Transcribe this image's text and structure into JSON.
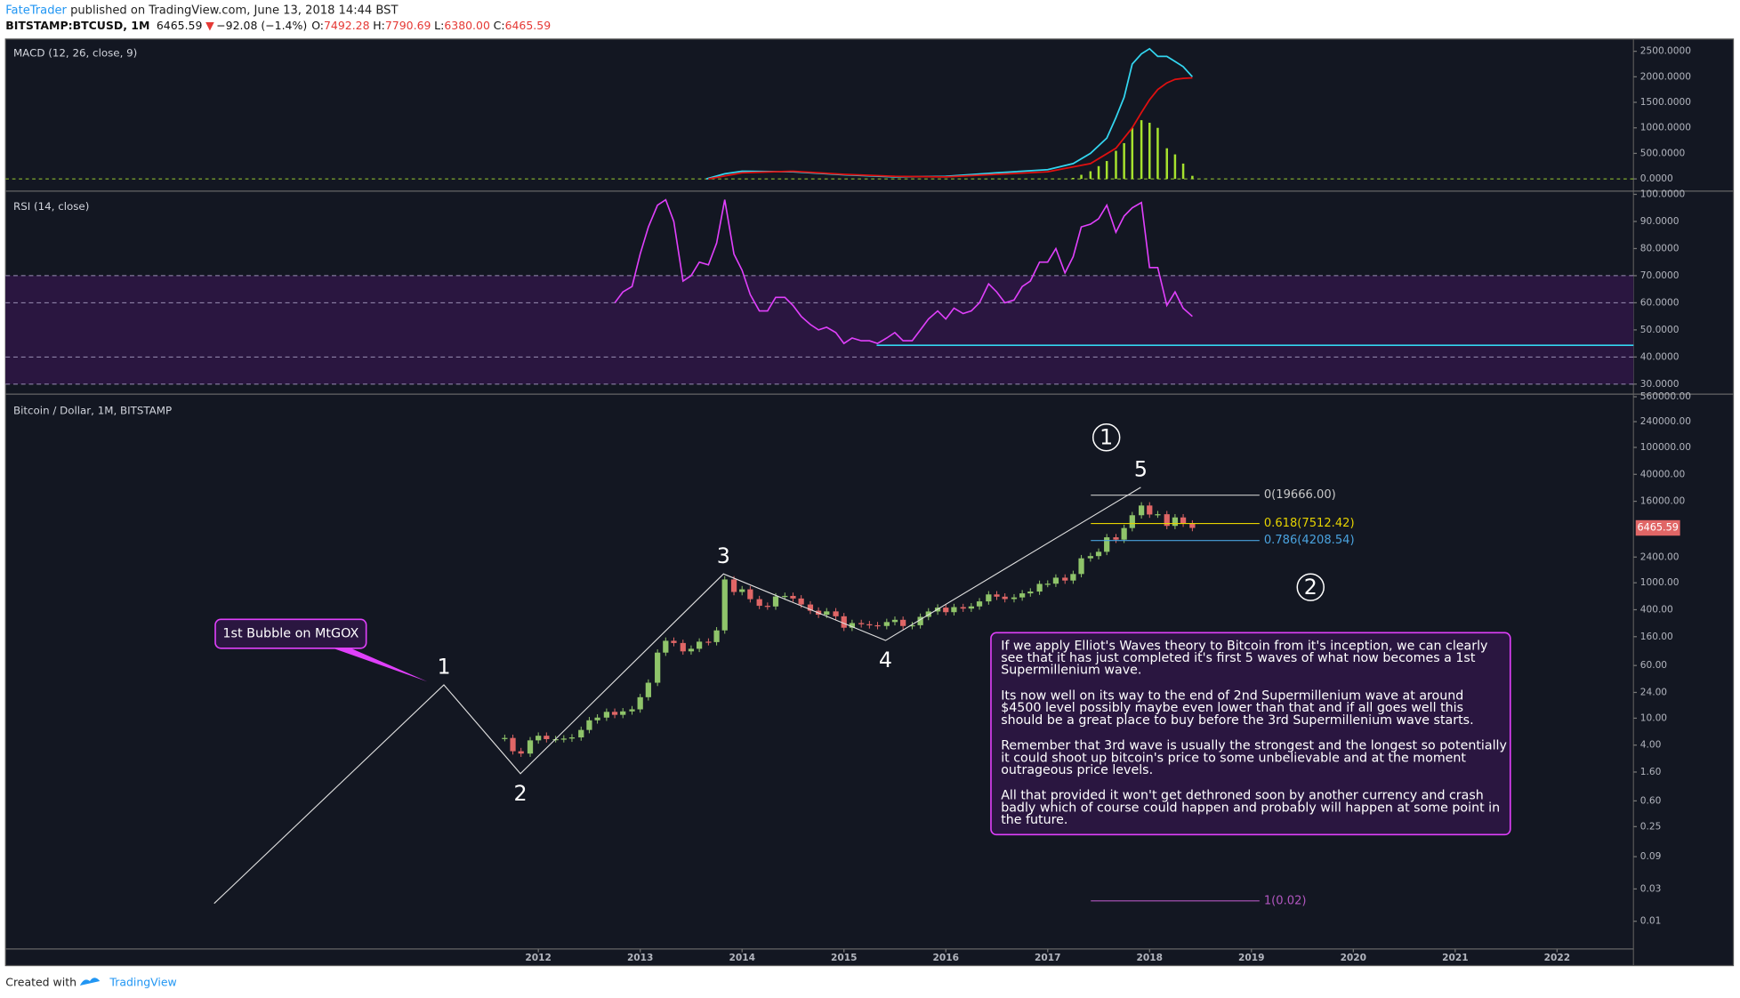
{
  "header": {
    "author": "FateTrader",
    "published": " published on TradingView.com, June 13, 2018 14:44 BST",
    "symbol": "BITSTAMP:BTCUSD, 1M",
    "last": "6465.59",
    "arrow": "▼",
    "change": "−92.08 (−1.4%)",
    "ohlc": [
      {
        "key": "O:",
        "value": "7492.28"
      },
      {
        "key": "H:",
        "value": "7790.69"
      },
      {
        "key": "L:",
        "value": "6380.00"
      },
      {
        "key": "C:",
        "value": "6465.59"
      }
    ]
  },
  "footer": {
    "created": "Created with",
    "brand": "TradingView"
  },
  "chart_data": {
    "type": "candlestick",
    "xlim": [
      2006.77,
      2022.75
    ],
    "xticks": [
      2012,
      2013,
      2014,
      2015,
      2016,
      2017,
      2018,
      2019,
      2020,
      2021,
      2022
    ],
    "macd": {
      "title": "MACD (12, 26, close, 9)",
      "ylim": [
        -239,
        2739
      ],
      "yticks": [
        {
          "value": 0,
          "label": "0.0000"
        },
        {
          "value": 500,
          "label": "500.0000"
        },
        {
          "value": 1000,
          "label": "1000.0000"
        },
        {
          "value": 1500,
          "label": "1500.0000"
        },
        {
          "value": 2000,
          "label": "2000.0000"
        },
        {
          "value": 2500,
          "label": "2500.0000"
        }
      ],
      "zero_color": "#9acd32",
      "series": [
        {
          "color": "#33d6f0",
          "x": [
            2013.65,
            2013.83,
            2014.0,
            2014.5,
            2015.0,
            2015.5,
            2016.0,
            2016.5,
            2017.0,
            2017.25,
            2017.42,
            2017.58,
            2017.67,
            2017.75,
            2017.83,
            2017.92,
            2018.0,
            2018.08,
            2018.17,
            2018.25,
            2018.33,
            2018.42
          ],
          "values": [
            0,
            100,
            150,
            140,
            80,
            40,
            50,
            120,
            180,
            300,
            500,
            800,
            1200,
            1600,
            2250,
            2450,
            2550,
            2400,
            2400,
            2300,
            2200,
            2000
          ]
        },
        {
          "color": "#e01010",
          "x": [
            2013.67,
            2014.0,
            2014.5,
            2015.0,
            2015.5,
            2016.0,
            2016.5,
            2017.0,
            2017.42,
            2017.67,
            2017.83,
            2017.92,
            2018.0,
            2018.08,
            2018.17,
            2018.25,
            2018.33,
            2018.42
          ],
          "values": [
            0,
            120,
            150,
            90,
            50,
            40,
            90,
            140,
            300,
            600,
            1000,
            1300,
            1550,
            1750,
            1880,
            1950,
            1970,
            1980
          ]
        }
      ],
      "histogram": {
        "color": "#a6e22e",
        "x": [
          2017.25,
          2017.33,
          2017.42,
          2017.5,
          2017.58,
          2017.67,
          2017.75,
          2017.83,
          2017.92,
          2018.0,
          2018.08,
          2018.17,
          2018.25,
          2018.33,
          2018.42
        ],
        "values": [
          20,
          80,
          150,
          250,
          350,
          550,
          700,
          1000,
          1150,
          1100,
          1000,
          600,
          480,
          300,
          60
        ]
      }
    },
    "rsi": {
      "title": "RSI (14, close)",
      "color": "#e040fb",
      "ylim": [
        26.3,
        101.2
      ],
      "yticks": [
        {
          "value": 30,
          "label": "30.0000"
        },
        {
          "value": 40,
          "label": "40.0000"
        },
        {
          "value": 50,
          "label": "50.0000"
        },
        {
          "value": 60,
          "label": "60.0000"
        },
        {
          "value": 70,
          "label": "70.0000"
        },
        {
          "value": 80,
          "label": "80.0000"
        },
        {
          "value": 90,
          "label": "90.0000"
        },
        {
          "value": 100,
          "label": "100.0000"
        }
      ],
      "bands": [
        30,
        40,
        60,
        70
      ],
      "x": [
        2012.75,
        2012.83,
        2012.92,
        2013.0,
        2013.08,
        2013.17,
        2013.25,
        2013.33,
        2013.42,
        2013.5,
        2013.58,
        2013.67,
        2013.75,
        2013.83,
        2013.92,
        2014.0,
        2014.08,
        2014.17,
        2014.25,
        2014.33,
        2014.42,
        2014.5,
        2014.58,
        2014.67,
        2014.75,
        2014.83,
        2014.92,
        2015.0,
        2015.08,
        2015.17,
        2015.25,
        2015.33,
        2015.42,
        2015.5,
        2015.58,
        2015.67,
        2015.75,
        2015.83,
        2015.92,
        2016.0,
        2016.08,
        2016.17,
        2016.25,
        2016.33,
        2016.42,
        2016.5,
        2016.58,
        2016.67,
        2016.75,
        2016.83,
        2016.92,
        2017.0,
        2017.08,
        2017.17,
        2017.25,
        2017.33,
        2017.42,
        2017.5,
        2017.58,
        2017.67,
        2017.75,
        2017.83,
        2017.92,
        2018.0,
        2018.08,
        2018.17,
        2018.25,
        2018.33,
        2018.42
      ],
      "values": [
        60,
        64,
        66,
        78,
        88,
        96,
        98,
        90,
        68,
        70,
        75,
        74,
        82,
        98,
        78,
        72,
        63,
        57,
        57,
        62,
        62,
        59,
        55,
        52,
        50,
        51,
        49,
        45,
        47,
        46,
        46,
        45,
        47,
        49,
        46,
        46,
        50,
        54,
        57,
        54,
        58,
        56,
        57,
        60,
        67,
        64,
        60,
        61,
        66,
        68,
        75,
        75,
        80,
        71,
        77,
        88,
        89,
        91,
        96,
        86,
        92,
        95,
        97,
        73,
        73,
        59,
        64,
        58,
        55
      ]
    },
    "price": {
      "title": "Bitcoin / Dollar, 1M, BITSTAMP",
      "log_scale": true,
      "up_color": "#8fc46a",
      "down_color": "#e06666",
      "ylim": [
        0.0039,
        612000
      ],
      "yticks": [
        {
          "value": 0.01,
          "label": "0.01"
        },
        {
          "value": 0.03,
          "label": "0.03"
        },
        {
          "value": 0.09,
          "label": "0.09"
        },
        {
          "value": 0.25,
          "label": "0.25"
        },
        {
          "value": 0.6,
          "label": "0.60"
        },
        {
          "value": 1.6,
          "label": "1.60"
        },
        {
          "value": 4,
          "label": "4.00"
        },
        {
          "value": 10,
          "label": "10.00"
        },
        {
          "value": 24,
          "label": "24.00"
        },
        {
          "value": 60,
          "label": "60.00"
        },
        {
          "value": 160,
          "label": "160.00"
        },
        {
          "value": 400,
          "label": "400.00"
        },
        {
          "value": 1000,
          "label": "1000.00"
        },
        {
          "value": 2400,
          "label": "2400.00"
        },
        {
          "value": 16000,
          "label": "16000.00"
        },
        {
          "value": 40000,
          "label": "40000.00"
        },
        {
          "value": 100000,
          "label": "100000.00"
        },
        {
          "value": 240000,
          "label": "240000.00"
        },
        {
          "value": 560000,
          "label": "560000.00"
        }
      ],
      "last_price": 6465.59,
      "last_color": "#e06666",
      "x": [
        2011.67,
        2011.75,
        2011.83,
        2011.92,
        2012.0,
        2012.08,
        2012.17,
        2012.25,
        2012.33,
        2012.42,
        2012.5,
        2012.58,
        2012.67,
        2012.75,
        2012.83,
        2012.92,
        2013.0,
        2013.08,
        2013.17,
        2013.25,
        2013.33,
        2013.42,
        2013.5,
        2013.58,
        2013.67,
        2013.75,
        2013.83,
        2013.92,
        2014.0,
        2014.08,
        2014.17,
        2014.25,
        2014.33,
        2014.42,
        2014.5,
        2014.58,
        2014.67,
        2014.75,
        2014.83,
        2014.92,
        2015.0,
        2015.08,
        2015.17,
        2015.25,
        2015.33,
        2015.42,
        2015.5,
        2015.58,
        2015.67,
        2015.75,
        2015.83,
        2015.92,
        2016.0,
        2016.08,
        2016.17,
        2016.25,
        2016.33,
        2016.42,
        2016.5,
        2016.58,
        2016.67,
        2016.75,
        2016.83,
        2016.92,
        2017.0,
        2017.08,
        2017.17,
        2017.25,
        2017.33,
        2017.42,
        2017.5,
        2017.58,
        2017.67,
        2017.75,
        2017.83,
        2017.92,
        2018.0,
        2018.08,
        2018.17,
        2018.25,
        2018.33,
        2018.42
      ],
      "close": [
        5.1,
        3.25,
        3.0,
        4.7,
        5.5,
        4.9,
        4.9,
        5.0,
        5.2,
        6.7,
        9.3,
        10.2,
        12.4,
        11.2,
        12.6,
        13.5,
        20.4,
        33.4,
        93,
        139,
        129,
        97,
        106,
        135,
        133,
        198,
        1120,
        732,
        800,
        573,
        457,
        447,
        628,
        640,
        586,
        478,
        387,
        338,
        378,
        320,
        217,
        254,
        244,
        236,
        230,
        263,
        284,
        230,
        236,
        314,
        377,
        430,
        368,
        437,
        416,
        448,
        531,
        673,
        624,
        575,
        608,
        698,
        742,
        963,
        970,
        1190,
        1080,
        1348,
        2300,
        2480,
        2870,
        4700,
        4340,
        6440,
        9950,
        13850,
        10200,
        10300,
        6930,
        9240,
        7490,
        6465.59
      ],
      "fib": [
        {
          "label": "0(19666.00)",
          "price": 19666,
          "color": "#c8c8c8"
        },
        {
          "label": "0.618(7512.42)",
          "price": 7512.42,
          "color": "#e6d300"
        },
        {
          "label": "0.786(4208.54)",
          "price": 4208.54,
          "color": "#4aa3df"
        },
        {
          "label": "1(0.02)",
          "price": 0.02,
          "color": "#b256c0"
        }
      ]
    },
    "annotations": {
      "waves": [
        "1",
        "2",
        "3",
        "4",
        "5"
      ],
      "cycle": [
        "1",
        "2"
      ],
      "callout": "1st Bubble on MtGOX",
      "note": [
        [
          "If we apply Elliot's Waves theory to Bitcoin from it's inception, we can clearly",
          "see that it has just completed it's first 5 waves of what now becomes a 1st",
          "Supermillenium wave."
        ],
        [
          "Its now well on its way to the end of 2nd Supermillenium wave at around",
          "$4500 level possibly maybe even lower than that and if all goes well this",
          "should be a great place to buy before the 3rd Supermillenium wave starts."
        ],
        [
          "Remember that 3rd wave is usually the strongest and the longest so potentially",
          "it could shoot up bitcoin's price to some unbelievable and at the moment",
          "outrageous price levels."
        ],
        [
          "All that provided it won't get dethroned soon by another currency and crash",
          "badly which of course could happen and probably will happen at some point in",
          "the future."
        ]
      ]
    }
  }
}
